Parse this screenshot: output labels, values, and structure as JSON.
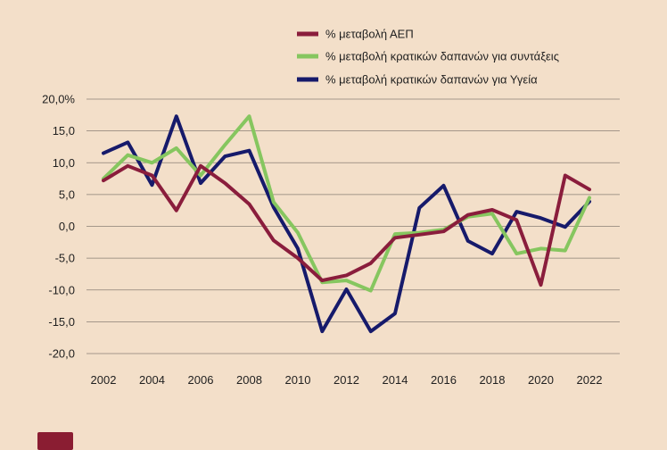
{
  "chart_data": {
    "type": "line",
    "title": "",
    "xlabel": "",
    "ylabel": "",
    "x": [
      2002,
      2003,
      2004,
      2005,
      2006,
      2007,
      2008,
      2009,
      2010,
      2011,
      2012,
      2013,
      2014,
      2015,
      2016,
      2017,
      2018,
      2019,
      2020,
      2021,
      2022
    ],
    "xticks": [
      "2002",
      "2004",
      "2006",
      "2008",
      "2010",
      "2012",
      "2014",
      "2016",
      "2018",
      "2020",
      "2022"
    ],
    "ylim": [
      -20,
      20
    ],
    "yticks": [
      {
        "value": 20,
        "label": "20,0%"
      },
      {
        "value": 15,
        "label": "15,0"
      },
      {
        "value": 10,
        "label": "10,0"
      },
      {
        "value": 5,
        "label": "5,0"
      },
      {
        "value": 0,
        "label": "0,0"
      },
      {
        "value": -5,
        "label": "-5,0"
      },
      {
        "value": -10,
        "label": "-10,0"
      },
      {
        "value": -15,
        "label": "-15,0"
      },
      {
        "value": -20,
        "label": "-20,0"
      }
    ],
    "grid": "horizontal",
    "legend_position": "top-right",
    "series": [
      {
        "name": "% μεταβολή ΑΕΠ",
        "color": "#8a1d3c",
        "values": [
          7.2,
          9.5,
          8.0,
          2.5,
          9.5,
          6.8,
          3.5,
          -2.2,
          -5.0,
          -8.5,
          -7.7,
          -5.8,
          -1.8,
          -1.3,
          -0.8,
          1.8,
          2.6,
          1.0,
          -9.2,
          8.0,
          5.8
        ]
      },
      {
        "name": "% μεταβολή κρατικών δαπανών για συντάξεις",
        "color": "#86c65f",
        "values": [
          7.5,
          11.2,
          10.0,
          12.3,
          8.0,
          12.8,
          17.3,
          3.8,
          -1.0,
          -8.8,
          -8.5,
          -10.1,
          -1.2,
          -1.0,
          -0.5,
          1.5,
          2.0,
          -4.3,
          -3.5,
          -3.8,
          4.5
        ]
      },
      {
        "name": "% μεταβολή κρατικών δαπανών για Υγεία",
        "color": "#161a6b",
        "values": [
          11.5,
          13.2,
          6.5,
          17.3,
          6.8,
          11.0,
          11.9,
          3.0,
          -3.5,
          -16.5,
          -9.9,
          -16.5,
          -13.7,
          2.9,
          6.4,
          -2.3,
          -4.3,
          2.3,
          1.3,
          -0.1,
          3.9
        ]
      }
    ]
  },
  "badge": {
    "color": "#8a1d32"
  }
}
